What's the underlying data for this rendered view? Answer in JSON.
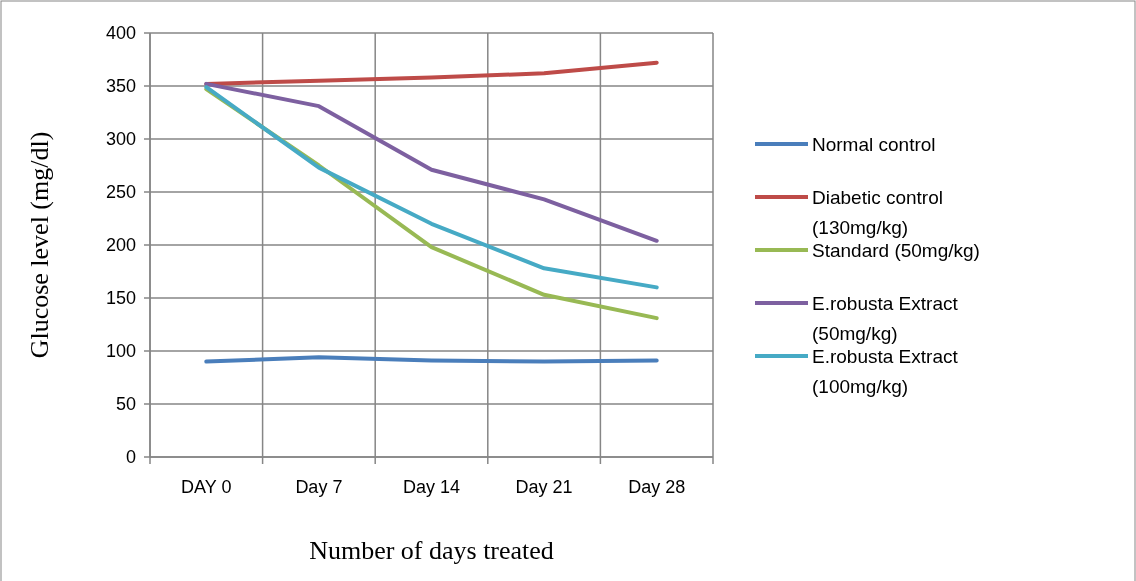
{
  "chart_data": {
    "type": "line",
    "xlabel": "Number of  days treated",
    "ylabel": "Glucose level (mg/dl)",
    "categories": [
      "DAY 0",
      "Day 7",
      "Day 14",
      "Day 21",
      "Day 28"
    ],
    "series": [
      {
        "name": "Normal control",
        "color": "#4a7ebb",
        "values": [
          90,
          94,
          91,
          90,
          91
        ]
      },
      {
        "name": "Diabetic control (130mg/kg)",
        "color": "#be4b48",
        "values": [
          352,
          355,
          358,
          362,
          372
        ]
      },
      {
        "name": "Standard (50mg/kg)",
        "color": "#98b954",
        "values": [
          347,
          275,
          198,
          153,
          131
        ]
      },
      {
        "name": "E.robusta Extract (50mg/kg)",
        "color": "#7d60a0",
        "values": [
          352,
          331,
          271,
          243,
          204
        ]
      },
      {
        "name": "E.robusta Extract (100mg/kg)",
        "color": "#46aac5",
        "values": [
          349,
          273,
          220,
          178,
          160
        ]
      }
    ],
    "ylim": [
      0,
      400
    ],
    "yticks": [
      0,
      50,
      100,
      150,
      200,
      250,
      300,
      350,
      400
    ],
    "grid": true,
    "legend": "right",
    "marker": "none",
    "line_style": "solid"
  }
}
